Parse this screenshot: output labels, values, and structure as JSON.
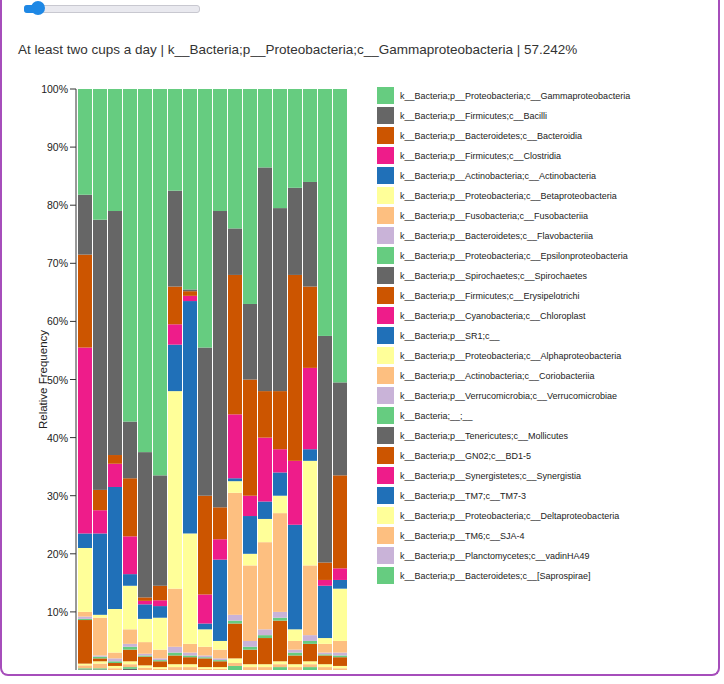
{
  "chart_data": {
    "type": "bar",
    "stacked": true,
    "grid": false,
    "legend": "right",
    "tick_labels": "y",
    "title": "At least two cups a day | k__Bacteria;p__Proteobacteria;c__Gammaproteobacteria | 57.242%",
    "y_label": "Relative Frequency",
    "ylim": [
      0,
      100
    ],
    "yticks": [
      {
        "value": 10,
        "label": "10%"
      },
      {
        "value": 20,
        "label": "20%"
      },
      {
        "value": 30,
        "label": "30%"
      },
      {
        "value": 40,
        "label": "40%"
      },
      {
        "value": 50,
        "label": "50%"
      },
      {
        "value": 60,
        "label": "60%"
      },
      {
        "value": 70,
        "label": "70%"
      },
      {
        "value": 80,
        "label": "80%"
      },
      {
        "value": 90,
        "label": "90%"
      },
      {
        "value": 100,
        "label": "100%"
      }
    ],
    "categories": [
      null,
      null,
      null,
      null,
      null,
      null,
      null,
      null,
      null,
      null,
      null,
      null,
      null,
      null,
      null,
      null,
      null,
      null
    ],
    "series": [
      {
        "name": "k__Bacteria;p__Proteobacteria;c__Gammaproteobacteria",
        "color": "#66cc80",
        "values": [
          18.2,
          22.5,
          21,
          57.242,
          62.5,
          66.5,
          17.5,
          34.5,
          44.5,
          21,
          24,
          37,
          13.5,
          20.5,
          17,
          16,
          42.5,
          50.5
        ]
      },
      {
        "name": "k__Bacteria;p__Firmicutes;c__Bacilli",
        "color": "#666666",
        "values": [
          10.3,
          46.5,
          42,
          9.758,
          25,
          19,
          16.5,
          0.3,
          25.5,
          51,
          8,
          13,
          38.5,
          31.5,
          15,
          18,
          39,
          16
        ]
      },
      {
        "name": "k__Bacteria;p__Bacteroidetes;c__Bacteroidia",
        "color": "#cc5500",
        "values": [
          16,
          3.5,
          1.5,
          10,
          0.6,
          2.5,
          6.5,
          0.8,
          17,
          5.5,
          24,
          20,
          8,
          10,
          32,
          14,
          3,
          16
        ]
      },
      {
        "name": "k__Bacteria;p__Firmicutes;c__Clostridia",
        "color": "#ee1c8a",
        "values": [
          32,
          4,
          4,
          6.5,
          0.6,
          1,
          3.5,
          0.9,
          5,
          3.5,
          11,
          3.5,
          11,
          4,
          11,
          14,
          1,
          2
        ]
      },
      {
        "name": "k__Bacteria;p__Actinobacteria;c__Actinobacteria",
        "color": "#2070b8",
        "values": [
          2.5,
          14,
          21,
          2,
          2.5,
          2,
          8,
          40,
          1,
          14,
          0.5,
          6.5,
          3,
          4,
          18,
          2,
          9,
          1.5
        ]
      },
      {
        "name": "k__Bacteria;p__Proteobacteria;c__Betaproteobacteria",
        "color": "#ffff99",
        "values": [
          11,
          0.5,
          7.5,
          7.5,
          4,
          5.5,
          34,
          19,
          3,
          1.5,
          2,
          2,
          4,
          3,
          2,
          18,
          1,
          9
        ]
      },
      {
        "name": "k__Bacteria;p__Fusobacteria;c__Fusobacteriia",
        "color": "#fdbf80",
        "values": [
          0.8,
          6.5,
          1,
          2.5,
          2,
          1.5,
          10,
          1.5,
          1.5,
          1.5,
          21,
          13,
          15,
          17,
          1.5,
          12,
          1.5,
          2
        ]
      },
      {
        "name": "k__Bacteria;p__Bacteroidetes;c__Flavobacteriia",
        "color": "#c9b3d8",
        "values": [
          0.4,
          0.2,
          0.5,
          0.5,
          0.3,
          0.3,
          1,
          0.5,
          0.3,
          0.3,
          1,
          1,
          1,
          1,
          0.5,
          1,
          0.3,
          0.5
        ]
      },
      {
        "name": "k__Bacteria;p__Proteobacteria;c__Epsilonproteobacteria",
        "color": "#66cc80",
        "values": [
          0.2,
          0.3,
          0.3,
          0.5,
          0.2,
          0.2,
          0.5,
          0.3,
          0.2,
          0.2,
          0.5,
          0.5,
          0.5,
          0.5,
          0.5,
          0.5,
          0.2,
          0.3
        ]
      },
      {
        "name": "k__Bacteria;p__Spirochaetes;c__Spirochaetes",
        "color": "#666666",
        "values": [
          0,
          0,
          0,
          0,
          0,
          0,
          0,
          0,
          0,
          0,
          0,
          0,
          0,
          0,
          0,
          0,
          0,
          0
        ]
      },
      {
        "name": "k__Bacteria;p__Firmicutes;c__Erysipelotrichi",
        "color": "#cc5500",
        "values": [
          7.5,
          0.5,
          0.5,
          2,
          1.5,
          1,
          1.5,
          1.2,
          1.5,
          1,
          6,
          2.5,
          4.5,
          7,
          1.5,
          3,
          1.5,
          1.5
        ]
      },
      {
        "name": "k__Bacteria;p__Cyanobacteria;c__Chloroplast",
        "color": "#ee1c8a",
        "values": [
          0,
          0,
          0,
          0,
          0,
          0,
          0,
          0,
          0,
          0,
          0,
          0,
          0,
          0,
          0,
          0,
          0,
          0
        ]
      },
      {
        "name": "k__Bacteria;p__SR1;c__",
        "color": "#2070b8",
        "values": [
          0,
          0,
          0,
          0,
          0,
          0,
          0,
          0,
          0,
          0,
          0,
          0,
          0,
          0,
          0,
          0,
          0,
          0
        ]
      },
      {
        "name": "k__Bacteria;p__Proteobacteria;c__Alphaproteobacteria",
        "color": "#ffff99",
        "values": [
          0.3,
          0.4,
          0.4,
          0.5,
          0.4,
          0.3,
          0.5,
          0.5,
          0.3,
          0.3,
          0.8,
          0.5,
          0.5,
          0.5,
          0.5,
          0.5,
          0.5,
          0.4
        ]
      },
      {
        "name": "k__Bacteria;p__Actinobacteria;c__Coriobacteriia",
        "color": "#fdbf80",
        "values": [
          0.5,
          0.8,
          0.3,
          0.5,
          0.4,
          0.2,
          0.5,
          0.5,
          0.2,
          0.2,
          0.5,
          0.5,
          0.5,
          0.5,
          0.5,
          0.5,
          0.5,
          0.3
        ]
      },
      {
        "name": "k__Bacteria;p__Verrucomicrobia;c__Verrucomicrobiae",
        "color": "#c9b3d8",
        "values": [
          0,
          0,
          0,
          0,
          0,
          0,
          0,
          0,
          0,
          0,
          0,
          0,
          0,
          0,
          0,
          0,
          0,
          0
        ]
      },
      {
        "name": "k__Bacteria;__;__",
        "color": "#66cc80",
        "values": [
          0.2,
          0.2,
          0,
          0.3,
          0,
          0,
          0,
          0,
          0,
          0,
          0.7,
          0,
          0,
          0.5,
          0,
          0.5,
          0,
          0
        ]
      },
      {
        "name": "k__Bacteria;p__Tenericutes;c__Mollicutes",
        "color": "#666666",
        "values": [
          0.1,
          0.1,
          0,
          0.2,
          0,
          0,
          0,
          0,
          0,
          0,
          0,
          0,
          0,
          0,
          0,
          0,
          0,
          0
        ]
      },
      {
        "name": "k__Bacteria;p__GN02;c__BD1-5",
        "color": "#cc5500",
        "values": [
          0,
          0,
          0,
          0,
          0,
          0,
          0,
          0,
          0,
          0,
          0,
          0,
          0,
          0,
          0,
          0,
          0,
          0
        ]
      },
      {
        "name": "k__Bacteria;p__Synergistetes;c__Synergistia",
        "color": "#ee1c8a",
        "values": [
          0,
          0,
          0,
          0,
          0,
          0,
          0,
          0,
          0,
          0,
          0,
          0,
          0,
          0,
          0,
          0,
          0,
          0
        ]
      },
      {
        "name": "k__Bacteria;p__TM7;c__TM7-3",
        "color": "#2070b8",
        "values": [
          0,
          0,
          0,
          0,
          0,
          0,
          0,
          0,
          0,
          0,
          0,
          0,
          0,
          0,
          0,
          0,
          0,
          0
        ]
      },
      {
        "name": "k__Bacteria;p__Proteobacteria;c__Deltaproteobacteria",
        "color": "#ffff99",
        "values": [
          0,
          0,
          0,
          0,
          0,
          0,
          0,
          0,
          0,
          0,
          0,
          0,
          0,
          0,
          0,
          0,
          0,
          0
        ]
      },
      {
        "name": "k__Bacteria;p__TM6;c__SJA-4",
        "color": "#fdbf80",
        "values": [
          0,
          0,
          0,
          0,
          0,
          0,
          0,
          0,
          0,
          0,
          0,
          0,
          0,
          0,
          0,
          0,
          0,
          0
        ]
      },
      {
        "name": "k__Bacteria;p__Planctomycetes;c__vadinHA49",
        "color": "#c9b3d8",
        "values": [
          0,
          0,
          0,
          0,
          0,
          0,
          0,
          0,
          0,
          0,
          0,
          0,
          0,
          0,
          0,
          0,
          0,
          0
        ]
      },
      {
        "name": "k__Bacteria;p__Bacteroidetes;c__[Saprospirae]",
        "color": "#66cc80",
        "values": [
          0,
          0,
          0,
          0,
          0,
          0,
          0,
          0,
          0,
          0,
          0,
          0,
          0,
          0,
          0,
          0,
          0,
          0
        ]
      }
    ]
  }
}
